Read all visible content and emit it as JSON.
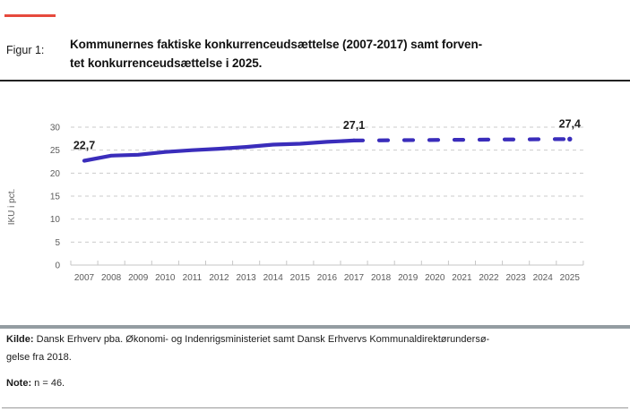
{
  "figure": {
    "label": "Figur 1:",
    "title_line1": "Kommunernes faktiske konkurrenceudsættelse (2007-2017) samt forven-",
    "title_line2": "tet konkurrenceudsættelse i 2025."
  },
  "chart_data": {
    "type": "line",
    "title": "",
    "xlabel": "",
    "ylabel": "IKU i pct.",
    "ylim": [
      0,
      30
    ],
    "yticks": [
      0,
      5,
      10,
      15,
      20,
      25,
      30
    ],
    "grid": "dashed-horizontal",
    "legend": "none",
    "categories": [
      "2007",
      "2008",
      "2009",
      "2010",
      "2011",
      "2012",
      "2013",
      "2014",
      "2015",
      "2016",
      "2017",
      "2018",
      "2019",
      "2020",
      "2021",
      "2022",
      "2023",
      "2024",
      "2025"
    ],
    "series": [
      {
        "style": "solid",
        "years": [
          "2007",
          "2008",
          "2009",
          "2010",
          "2011",
          "2012",
          "2013",
          "2014",
          "2015",
          "2016",
          "2017"
        ],
        "values": [
          22.7,
          23.8,
          24.0,
          24.6,
          25.0,
          25.3,
          25.7,
          26.2,
          26.4,
          26.8,
          27.1
        ]
      },
      {
        "style": "dashed",
        "years": [
          "2017",
          "2025"
        ],
        "values": [
          27.1,
          27.4
        ]
      }
    ],
    "annotations": [
      {
        "x": "2007",
        "value": 22.7,
        "label": "22,7"
      },
      {
        "x": "2017",
        "value": 27.1,
        "label": "27,1"
      },
      {
        "x": "2025",
        "value": 27.4,
        "label": "27,4"
      }
    ],
    "colors": {
      "line": "#3a2dbb",
      "grid": "#cbcbcb",
      "axis": "#c6c6c6",
      "tick_label": "#5c5c5c",
      "data_label": "#1d1d1d"
    }
  },
  "footer": {
    "source_label": "Kilde:",
    "source_line1": "Dansk Erhverv pba. Økonomi- og Indenrigsministeriet samt Dansk Erhvervs Kommunaldirektørundersø-",
    "source_line2": "gelse fra 2018.",
    "note_label": "Note:",
    "note_text": "n = 46."
  },
  "accents": {
    "red_dash": "#e6493d",
    "divider_gray": "#949da2"
  }
}
